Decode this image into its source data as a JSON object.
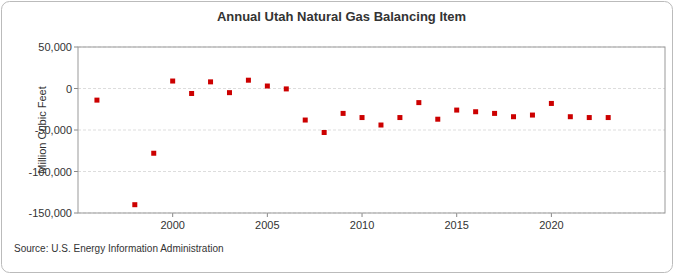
{
  "chart_data": {
    "type": "scatter",
    "title": "Annual Utah Natural Gas Balancing Item",
    "y_label": "Million Cubic Feet",
    "source": "Source: U.S. Energy Information Administration",
    "x": [
      1996,
      1998,
      1999,
      2000,
      2001,
      2002,
      2003,
      2004,
      2005,
      2006,
      2007,
      2008,
      2009,
      2010,
      2011,
      2012,
      2013,
      2014,
      2015,
      2016,
      2017,
      2018,
      2019,
      2020,
      2021,
      2022,
      2023
    ],
    "values": [
      -14000,
      -140000,
      -78000,
      9000,
      -6000,
      8000,
      -5000,
      10000,
      3000,
      -500,
      -38000,
      -53000,
      -30000,
      -35000,
      -44000,
      -35000,
      -17000,
      -37000,
      -26000,
      -28000,
      -30000,
      -34000,
      -32000,
      -18000,
      -34000,
      -35000,
      -35000
    ],
    "color": "#cc0000",
    "marker": "square",
    "xlim": [
      1995,
      2026
    ],
    "xticks": [
      2000,
      2005,
      2010,
      2015,
      2020
    ],
    "ylim": [
      -150000,
      50000
    ],
    "yticks": [
      {
        "value": -150000,
        "label": "-150,000"
      },
      {
        "value": -100000,
        "label": "-100,000"
      },
      {
        "value": -50000,
        "label": "-50,000"
      },
      0,
      {
        "value": 50000,
        "label": "50,000"
      }
    ],
    "grid": true
  }
}
